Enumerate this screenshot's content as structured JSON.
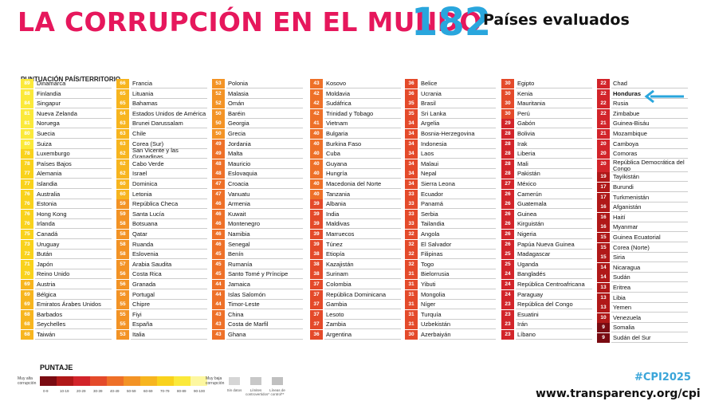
{
  "header": {
    "title": "LA CORRUPCIÓN EN EL MUNDO",
    "count": "182",
    "count_label": "Países evaluados",
    "column_header": "PUNTUACIÓN PAÍS/TERRITORIO"
  },
  "chart_data": {
    "type": "table",
    "columns": [
      [
        {
          "score": 89,
          "name": "Dinamarca"
        },
        {
          "score": 88,
          "name": "Finlandia"
        },
        {
          "score": 84,
          "name": "Singapur"
        },
        {
          "score": 81,
          "name": "Nueva Zelanda"
        },
        {
          "score": 81,
          "name": "Noruega"
        },
        {
          "score": 80,
          "name": "Suecia"
        },
        {
          "score": 80,
          "name": "Suiza"
        },
        {
          "score": 78,
          "name": "Luxemburgo"
        },
        {
          "score": 78,
          "name": "Países Bajos"
        },
        {
          "score": 77,
          "name": "Alemania"
        },
        {
          "score": 77,
          "name": "Islandia"
        },
        {
          "score": 76,
          "name": "Australia"
        },
        {
          "score": 76,
          "name": "Estonia"
        },
        {
          "score": 76,
          "name": "Hong Kong"
        },
        {
          "score": 76,
          "name": "Irlanda"
        },
        {
          "score": 75,
          "name": "Canadá"
        },
        {
          "score": 73,
          "name": "Uruguay"
        },
        {
          "score": 72,
          "name": "Bután"
        },
        {
          "score": 71,
          "name": "Japón"
        },
        {
          "score": 70,
          "name": "Reino Unido"
        },
        {
          "score": 69,
          "name": "Austria"
        },
        {
          "score": 69,
          "name": "Bélgica"
        },
        {
          "score": 69,
          "name": "Emiratos Árabes Unidos"
        },
        {
          "score": 68,
          "name": "Barbados"
        },
        {
          "score": 68,
          "name": "Seychelles"
        },
        {
          "score": 68,
          "name": "Taiwán"
        }
      ],
      [
        {
          "score": 66,
          "name": "Francia"
        },
        {
          "score": 65,
          "name": "Lituania"
        },
        {
          "score": 65,
          "name": "Bahamas"
        },
        {
          "score": 64,
          "name": "Estados Unidos de América"
        },
        {
          "score": 63,
          "name": "Brunei Darussalam"
        },
        {
          "score": 63,
          "name": "Chile"
        },
        {
          "score": 63,
          "name": "Corea (Sur)"
        },
        {
          "score": 62,
          "name": "San Vicente y las Granadinas"
        },
        {
          "score": 62,
          "name": "Cabo Verde"
        },
        {
          "score": 62,
          "name": "Israel"
        },
        {
          "score": 60,
          "name": "Dominica"
        },
        {
          "score": 60,
          "name": "Letonia"
        },
        {
          "score": 59,
          "name": "República Checa"
        },
        {
          "score": 59,
          "name": "Santa Lucía"
        },
        {
          "score": 58,
          "name": "Botsuana"
        },
        {
          "score": 58,
          "name": "Qatar"
        },
        {
          "score": 58,
          "name": "Ruanda"
        },
        {
          "score": 58,
          "name": "Eslovenia"
        },
        {
          "score": 57,
          "name": "Arabia Saudita"
        },
        {
          "score": 56,
          "name": "Costa Rica"
        },
        {
          "score": 56,
          "name": "Granada"
        },
        {
          "score": 56,
          "name": "Portugal"
        },
        {
          "score": 55,
          "name": "Chipre"
        },
        {
          "score": 55,
          "name": "Fiyi"
        },
        {
          "score": 55,
          "name": "España"
        },
        {
          "score": 53,
          "name": "Italia"
        }
      ],
      [
        {
          "score": 53,
          "name": "Polonia"
        },
        {
          "score": 52,
          "name": "Malasia"
        },
        {
          "score": 52,
          "name": "Omán"
        },
        {
          "score": 50,
          "name": "Baréin"
        },
        {
          "score": 50,
          "name": "Georgia"
        },
        {
          "score": 50,
          "name": "Grecia"
        },
        {
          "score": 49,
          "name": "Jordania"
        },
        {
          "score": 49,
          "name": "Malta"
        },
        {
          "score": 48,
          "name": "Mauricio"
        },
        {
          "score": 48,
          "name": "Eslovaquia"
        },
        {
          "score": 47,
          "name": "Croacia"
        },
        {
          "score": 47,
          "name": "Vanuatu"
        },
        {
          "score": 46,
          "name": "Armenia"
        },
        {
          "score": 46,
          "name": "Kuwait"
        },
        {
          "score": 46,
          "name": "Montenegro"
        },
        {
          "score": 46,
          "name": "Namibia"
        },
        {
          "score": 46,
          "name": "Senegal"
        },
        {
          "score": 45,
          "name": "Benín"
        },
        {
          "score": 45,
          "name": "Rumanía"
        },
        {
          "score": 45,
          "name": "Santo Tomé y Príncipe"
        },
        {
          "score": 44,
          "name": "Jamaica"
        },
        {
          "score": 44,
          "name": "Islas Salomón"
        },
        {
          "score": 44,
          "name": "Timor-Leste"
        },
        {
          "score": 43,
          "name": "China"
        },
        {
          "score": 43,
          "name": "Costa de Marfil"
        },
        {
          "score": 43,
          "name": "Ghana"
        }
      ],
      [
        {
          "score": 43,
          "name": "Kosovo"
        },
        {
          "score": 42,
          "name": "Moldavia"
        },
        {
          "score": 42,
          "name": "Sudáfrica"
        },
        {
          "score": 42,
          "name": "Trinidad y Tobago"
        },
        {
          "score": 41,
          "name": "Vietnam"
        },
        {
          "score": 40,
          "name": "Bulgaria"
        },
        {
          "score": 40,
          "name": "Burkina Faso"
        },
        {
          "score": 40,
          "name": "Cuba"
        },
        {
          "score": 40,
          "name": "Guyana"
        },
        {
          "score": 40,
          "name": "Hungría"
        },
        {
          "score": 40,
          "name": "Macedonia del Norte"
        },
        {
          "score": 40,
          "name": "Tanzania"
        },
        {
          "score": 39,
          "name": "Albania"
        },
        {
          "score": 39,
          "name": "India"
        },
        {
          "score": 39,
          "name": "Maldivas"
        },
        {
          "score": 39,
          "name": "Marruecos"
        },
        {
          "score": 39,
          "name": "Túnez"
        },
        {
          "score": 38,
          "name": "Etiopía"
        },
        {
          "score": 38,
          "name": "Kazajistán"
        },
        {
          "score": 38,
          "name": "Surinam"
        },
        {
          "score": 37,
          "name": "Colombia"
        },
        {
          "score": 37,
          "name": "República Dominicana"
        },
        {
          "score": 37,
          "name": "Gambia"
        },
        {
          "score": 37,
          "name": "Lesoto"
        },
        {
          "score": 37,
          "name": "Zambia"
        },
        {
          "score": 36,
          "name": "Argentina"
        }
      ],
      [
        {
          "score": 36,
          "name": "Belice"
        },
        {
          "score": 36,
          "name": "Ucrania"
        },
        {
          "score": 35,
          "name": "Brasil"
        },
        {
          "score": 35,
          "name": "Sri Lanka"
        },
        {
          "score": 34,
          "name": "Argelia"
        },
        {
          "score": 34,
          "name": "Bosnia-Herzegovina"
        },
        {
          "score": 34,
          "name": "Indonesia"
        },
        {
          "score": 34,
          "name": "Laos"
        },
        {
          "score": 34,
          "name": "Malaui"
        },
        {
          "score": 34,
          "name": "Nepal"
        },
        {
          "score": 34,
          "name": "Sierra Leona"
        },
        {
          "score": 33,
          "name": "Ecuador"
        },
        {
          "score": 33,
          "name": "Panamá"
        },
        {
          "score": 33,
          "name": "Serbia"
        },
        {
          "score": 33,
          "name": "Tailandia"
        },
        {
          "score": 32,
          "name": "Angola"
        },
        {
          "score": 32,
          "name": "El Salvador"
        },
        {
          "score": 32,
          "name": "Filipinas"
        },
        {
          "score": 32,
          "name": "Togo"
        },
        {
          "score": 31,
          "name": "Bielorrusia"
        },
        {
          "score": 31,
          "name": "Yibuti"
        },
        {
          "score": 31,
          "name": "Mongolia"
        },
        {
          "score": 31,
          "name": "Níger"
        },
        {
          "score": 31,
          "name": "Turquía"
        },
        {
          "score": 31,
          "name": "Uzbekistán"
        },
        {
          "score": 30,
          "name": "Azerbaiyán"
        }
      ],
      [
        {
          "score": 30,
          "name": "Egipto"
        },
        {
          "score": 30,
          "name": "Kenia"
        },
        {
          "score": 30,
          "name": "Mauritania"
        },
        {
          "score": 30,
          "name": "Perú"
        },
        {
          "score": 29,
          "name": "Gabón"
        },
        {
          "score": 28,
          "name": "Bolivia"
        },
        {
          "score": 28,
          "name": "Irak"
        },
        {
          "score": 28,
          "name": "Liberia"
        },
        {
          "score": 28,
          "name": "Mali"
        },
        {
          "score": 28,
          "name": "Pakistán"
        },
        {
          "score": 27,
          "name": "México"
        },
        {
          "score": 26,
          "name": "Camerún"
        },
        {
          "score": 26,
          "name": "Guatemala"
        },
        {
          "score": 26,
          "name": "Guinea"
        },
        {
          "score": 26,
          "name": "Kirguistán"
        },
        {
          "score": 26,
          "name": "Nigeria"
        },
        {
          "score": 26,
          "name": "Papúa Nueva Guinea"
        },
        {
          "score": 25,
          "name": "Madagascar"
        },
        {
          "score": 25,
          "name": "Uganda"
        },
        {
          "score": 24,
          "name": "Bangladés"
        },
        {
          "score": 24,
          "name": "República Centroafricana"
        },
        {
          "score": 24,
          "name": "Paraguay"
        },
        {
          "score": 23,
          "name": "República del Congo"
        },
        {
          "score": 23,
          "name": "Esuatini"
        },
        {
          "score": 23,
          "name": "Irán"
        },
        {
          "score": 23,
          "name": "Líbano"
        }
      ],
      [
        {
          "score": 22,
          "name": "Chad"
        },
        {
          "score": 22,
          "name": "Honduras"
        },
        {
          "score": 22,
          "name": "Rusia"
        },
        {
          "score": 22,
          "name": "Zimbabue"
        },
        {
          "score": 21,
          "name": "Guinea-Bisáu"
        },
        {
          "score": 21,
          "name": "Mozambique"
        },
        {
          "score": 20,
          "name": "Camboya"
        },
        {
          "score": 20,
          "name": "Comoras"
        },
        {
          "score": 20,
          "name": "República Democrática del Congo"
        },
        {
          "score": 19,
          "name": "Tayikistán"
        },
        {
          "score": 17,
          "name": "Burundi"
        },
        {
          "score": 17,
          "name": "Turkmenistán"
        },
        {
          "score": 16,
          "name": "Afganistán"
        },
        {
          "score": 16,
          "name": "Haití"
        },
        {
          "score": 16,
          "name": "Myanmar"
        },
        {
          "score": 15,
          "name": "Guinea Ecuatorial"
        },
        {
          "score": 15,
          "name": "Corea (Norte)"
        },
        {
          "score": 15,
          "name": "Siria"
        },
        {
          "score": 14,
          "name": "Nicaragua"
        },
        {
          "score": 14,
          "name": "Sudán"
        },
        {
          "score": 13,
          "name": "Eritrea"
        },
        {
          "score": 13,
          "name": "Libia"
        },
        {
          "score": 13,
          "name": "Yemen"
        },
        {
          "score": 10,
          "name": "Venezuela"
        },
        {
          "score": 9,
          "name": "Somalia"
        },
        {
          "score": 9,
          "name": "Sudán del Sur"
        }
      ]
    ],
    "highlighted": "Honduras",
    "highlight_color": "#29a6dd",
    "scale_colors": [
      "#7a0b12",
      "#b01818",
      "#d2242a",
      "#e44a2a",
      "#ee7028",
      "#f39325",
      "#f7b51f",
      "#f9d21c",
      "#fbe93a",
      "#fdf7a0"
    ]
  },
  "legend": {
    "title": "PUNTAJE",
    "more_corruption": "Muy alta corrupción",
    "less_corruption": "Muy baja corrupción",
    "ranges": [
      "0-9",
      "10-19",
      "20-29",
      "30-39",
      "40-49",
      "50-59",
      "60-69",
      "70-79",
      "80-89",
      "90-100"
    ],
    "no_data": "Sin datos",
    "disputed_boundaries": "Límites controvertidos*",
    "control_lines": "Líneas de control**"
  },
  "footer": {
    "hashtag": "#CPI2025",
    "url": "www.transparency.org/cpi"
  }
}
